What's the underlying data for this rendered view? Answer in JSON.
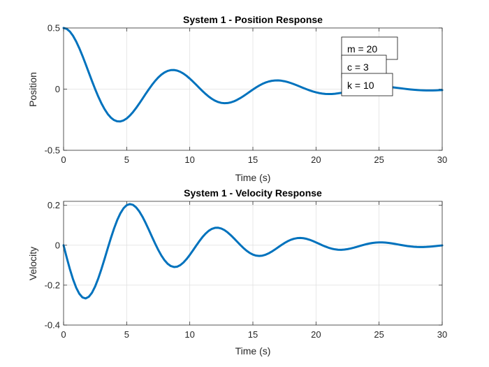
{
  "chart_data": [
    {
      "type": "line",
      "title": "System 1 - Position Response",
      "xlabel": "Time (s)",
      "ylabel": "Position",
      "xlim": [
        0,
        30
      ],
      "ylim": [
        -0.5,
        0.5
      ],
      "xticks": [
        0,
        5,
        10,
        15,
        20,
        25,
        30
      ],
      "yticks": [
        -0.5,
        0,
        0.5
      ],
      "ytick_labels": [
        "-0.5",
        "0",
        "0.5"
      ],
      "grid": true,
      "line_color": "#0072BD",
      "series": [
        {
          "x": [
            0,
            0.25,
            0.5,
            0.75,
            1,
            1.25,
            1.5,
            1.75,
            2,
            2.25,
            2.5,
            2.75,
            3,
            3.25,
            3.5,
            3.75,
            4,
            4.25,
            4.5,
            4.75,
            5,
            5.25,
            5.5,
            5.75,
            6,
            6.25,
            6.5,
            6.75,
            7,
            7.25,
            7.5,
            7.75,
            8,
            8.25,
            8.5,
            8.75,
            9,
            9.25,
            9.5,
            9.75,
            10,
            10.25,
            10.5,
            10.75,
            11,
            11.25,
            11.5,
            11.75,
            12,
            12.25,
            12.5,
            12.75,
            13,
            13.25,
            13.5,
            13.75,
            14,
            14.25,
            14.5,
            14.75,
            15,
            15.25,
            15.5,
            15.75,
            16,
            16.25,
            16.5,
            16.75,
            17,
            17.25,
            17.5,
            17.75,
            18,
            18.25,
            18.5,
            18.75,
            19,
            19.25,
            19.5,
            19.75,
            20,
            20.25,
            20.5,
            20.75,
            21,
            21.25,
            21.5,
            21.75,
            22,
            22.25,
            22.5,
            22.75,
            23,
            23.25,
            23.5,
            23.75,
            24,
            24.25,
            24.5,
            24.75,
            25,
            25.25,
            25.5,
            25.75,
            26,
            26.25,
            26.5,
            26.75,
            27,
            27.25,
            27.5,
            27.75,
            28,
            28.25,
            28.5,
            28.75,
            29,
            29.25,
            29.5,
            29.75,
            30
          ],
          "y": [
            0.5,
            0.4925,
            0.4706,
            0.4356,
            0.3893,
            0.3338,
            0.2713,
            0.2044,
            0.1354,
            0.0667,
            0.0006,
            -0.061,
            -0.1164,
            -0.1641,
            -0.2033,
            -0.233,
            -0.253,
            -0.2632,
            -0.264,
            -0.2559,
            -0.2398,
            -0.2166,
            -0.1876,
            -0.154,
            -0.1173,
            -0.0788,
            -0.0399,
            -0.002,
            0.0339,
            0.0664,
            0.0948,
            0.1184,
            0.1365,
            0.149,
            0.1555,
            0.1563,
            0.1514,
            0.1414,
            0.1267,
            0.1081,
            0.0862,
            0.062,
            0.0365,
            0.0105,
            -0.015,
            -0.039,
            -0.0606,
            -0.0793,
            -0.0944,
            -0.1055,
            -0.1125,
            -0.1152,
            -0.1138,
            -0.1085,
            -0.0997,
            -0.0878,
            -0.0734,
            -0.0571,
            -0.0396,
            -0.0215,
            -0.0036,
            0.0135,
            0.029,
            0.0425,
            0.0537,
            0.0622,
            0.068,
            0.0709,
            0.0712,
            0.069,
            0.0645,
            0.058,
            0.05,
            0.0408,
            0.0307,
            0.0201,
            0.0095,
            -0.0007,
            -0.0102,
            -0.0188,
            -0.0262,
            -0.0321,
            -0.0365,
            -0.0392,
            -0.0402,
            -0.0397,
            -0.0377,
            -0.0345,
            -0.0303,
            -0.0252,
            -0.0196,
            -0.0136,
            -0.0075,
            -0.0015,
            0.004,
            0.009,
            0.0133,
            0.0167,
            0.0192,
            0.0207,
            0.0212,
            0.0209,
            0.0197,
            0.0179,
            0.0155,
            0.0127,
            0.0096,
            0.0064,
            0.0032,
            0.0001,
            -0.0027,
            -0.0052,
            -0.0073,
            -0.0089,
            -0.01,
            -0.0106,
            -0.0107,
            -0.0104,
            -0.0098,
            -0.0088,
            -0.0077
          ]
        }
      ],
      "annotations": [
        "m = 20",
        "c = 3",
        "k = 10"
      ]
    },
    {
      "type": "line",
      "title": "System 1 - Velocity Response",
      "xlabel": "Time (s)",
      "ylabel": "Velocity",
      "xlim": [
        0,
        30
      ],
      "ylim": [
        -0.4,
        0.22
      ],
      "xticks": [
        0,
        5,
        10,
        15,
        20,
        25,
        30
      ],
      "yticks": [
        -0.4,
        -0.2,
        0,
        0.2
      ],
      "ytick_labels": [
        "-0.4",
        "-0.2",
        "0",
        "0.2"
      ],
      "grid": true,
      "line_color": "#0072BD",
      "series": [
        {
          "x": [
            0,
            0.25,
            0.5,
            0.75,
            1,
            1.25,
            1.5,
            1.75,
            2,
            2.25,
            2.5,
            2.75,
            3,
            3.25,
            3.5,
            3.75,
            4,
            4.25,
            4.5,
            4.75,
            5,
            5.25,
            5.5,
            5.75,
            6,
            6.25,
            6.5,
            6.75,
            7,
            7.25,
            7.5,
            7.75,
            8,
            8.25,
            8.5,
            8.75,
            9,
            9.25,
            9.5,
            9.75,
            10,
            10.25,
            10.5,
            10.75,
            11,
            11.25,
            11.5,
            11.75,
            12,
            12.25,
            12.5,
            12.75,
            13,
            13.25,
            13.5,
            13.75,
            14,
            14.25,
            14.5,
            14.75,
            15,
            15.25,
            15.5,
            15.75,
            16,
            16.25,
            16.5,
            16.75,
            17,
            17.25,
            17.5,
            17.75,
            18,
            18.25,
            18.5,
            18.75,
            19,
            19.25,
            19.5,
            19.75,
            20,
            20.25,
            20.5,
            20.75,
            21,
            21.25,
            21.5,
            21.75,
            22,
            22.25,
            22.5,
            22.75,
            23,
            23.25,
            23.5,
            23.75,
            24,
            24.25,
            24.5,
            24.75,
            25,
            25.25,
            25.5,
            25.75,
            26,
            26.25,
            26.5,
            26.75,
            27,
            27.25,
            27.5,
            27.75,
            28,
            28.25,
            28.5,
            28.75,
            29,
            29.25,
            29.5,
            29.75,
            30
          ],
          "y": [
            0,
            -0.0618,
            -0.1197,
            -0.1708,
            -0.2127,
            -0.2433,
            -0.2615,
            -0.2665,
            -0.2585,
            -0.2381,
            -0.2068,
            -0.1664,
            -0.1193,
            -0.0681,
            -0.0154,
            0.0361,
            0.0839,
            0.1257,
            0.1598,
            0.185,
            0.2005,
            0.2061,
            0.2022,
            0.1897,
            0.1695,
            0.143,
            0.112,
            0.0782,
            0.0432,
            0.0089,
            -0.0232,
            -0.0517,
            -0.0753,
            -0.093,
            -0.1044,
            -0.1091,
            -0.1074,
            -0.0996,
            -0.0865,
            -0.0691,
            -0.0485,
            -0.026,
            -0.0029,
            0.0196,
            0.0403,
            0.0581,
            0.0722,
            0.082,
            0.0872,
            0.0877,
            0.0837,
            0.0757,
            0.0643,
            0.0503,
            0.0346,
            0.0181,
            0.0017,
            -0.0137,
            -0.0274,
            -0.0386,
            -0.0469,
            -0.052,
            -0.0537,
            -0.0522,
            -0.0477,
            -0.0407,
            -0.0317,
            -0.0214,
            -0.0104,
            0.0005,
            0.0108,
            0.0198,
            0.0271,
            0.0324,
            0.0355,
            0.0364,
            0.0352,
            0.0321,
            0.0273,
            0.0212,
            0.0143,
            0.0071,
            -0.0001,
            -0.0067,
            -0.0125,
            -0.0172,
            -0.0205,
            -0.0224,
            -0.0228,
            -0.0218,
            -0.0195,
            -0.0163,
            -0.0123,
            -0.0078,
            -0.0031,
            0.0014,
            0.0055,
            0.009,
            0.0117,
            0.0135,
            0.0143,
            0.0142,
            0.0133,
            0.0116,
            0.0094,
            0.0067,
            0.0039,
            0.001,
            -0.0017,
            -0.0041,
            -0.0061,
            -0.0076,
            -0.0086,
            -0.009,
            -0.0088,
            -0.0082,
            -0.0071,
            -0.0058,
            -0.0042,
            -0.0026,
            -0.0009
          ]
        }
      ]
    }
  ]
}
